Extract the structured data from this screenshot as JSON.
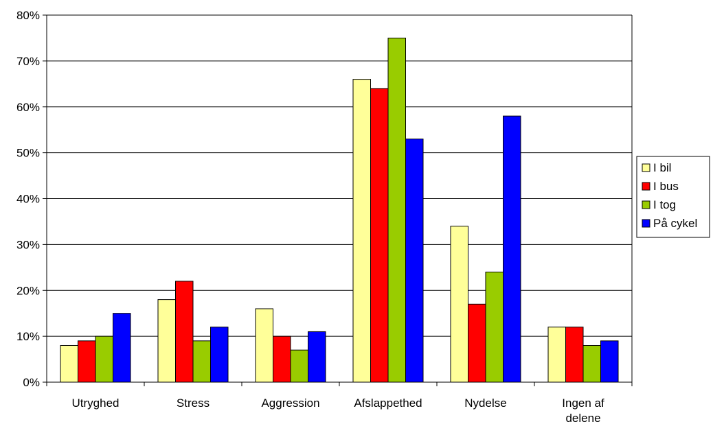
{
  "chart_data": {
    "type": "bar",
    "categories": [
      [
        "Utryghed"
      ],
      [
        "Stress"
      ],
      [
        "Aggression"
      ],
      [
        "Afslappethed"
      ],
      [
        "Nydelse"
      ],
      [
        "Ingen af",
        "delene"
      ]
    ],
    "series": [
      {
        "name": "I bil",
        "color": "#ffff99",
        "values": [
          8,
          18,
          16,
          66,
          34,
          12
        ]
      },
      {
        "name": "I bus",
        "color": "#ff0000",
        "values": [
          9,
          22,
          10,
          64,
          17,
          12
        ]
      },
      {
        "name": "I tog",
        "color": "#99cc00",
        "values": [
          10,
          9,
          7,
          75,
          24,
          8
        ]
      },
      {
        "name": "På cykel",
        "color": "#0000ff",
        "values": [
          15,
          12,
          11,
          53,
          58,
          9
        ]
      }
    ],
    "yticks": [
      "0%",
      "10%",
      "20%",
      "30%",
      "40%",
      "50%",
      "60%",
      "70%",
      "80%"
    ],
    "ylim": [
      0,
      80
    ],
    "y_unit": "%",
    "grid": true,
    "legend_position": "right",
    "title": "",
    "xlabel": "",
    "ylabel": ""
  }
}
